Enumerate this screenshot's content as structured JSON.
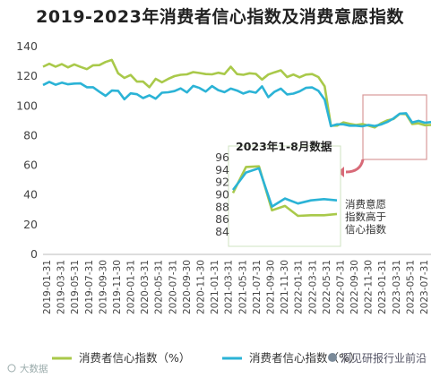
{
  "title": "2019-2023年消费者信心指数及消费意愿指数",
  "chart_data": [
    {
      "type": "line",
      "title": "2019-2023年消费者信心指数及消费意愿指数",
      "xlabel": "",
      "ylabel": "",
      "ylim": [
        0,
        140
      ],
      "yticks": [
        0,
        20,
        40,
        60,
        80,
        100,
        120,
        140
      ],
      "xtick_labels": [
        "2019-01-31",
        "2019-03-31",
        "2019-05-31",
        "2019-07-31",
        "2019-09-30",
        "2019-11-30",
        "2020-01-31",
        "2020-03-31",
        "2020-05-31",
        "2020-07-31",
        "2020-09-30",
        "2020-11-30",
        "2021-01-31",
        "2021-03-31",
        "2021-05-31",
        "2021-07-31",
        "2021-09-30",
        "2021-11-30",
        "2022-01-31",
        "2022-03-31",
        "2022-05-31",
        "2022-07-31",
        "2022-09-30",
        "2022-11-30",
        "2023-01-31",
        "2023-03-31",
        "2023-05-31",
        "2023-07-31"
      ],
      "legend_position": "bottom",
      "grid": false,
      "series": [
        {
          "name": "消费者信心指数（%）",
          "color": "#a9c94a",
          "values": [
            126.4,
            128.4,
            126.5,
            128.2,
            126.0,
            128.0,
            126.3,
            124.8,
            127.4,
            127.5,
            129.6,
            131.0,
            122.0,
            118.9,
            120.9,
            116.4,
            116.4,
            112.6,
            118.3,
            115.9,
            118.2,
            120.1,
            121.0,
            121.3,
            122.8,
            122.2,
            121.5,
            121.3,
            122.4,
            121.5,
            126.4,
            121.5,
            121.0,
            122.0,
            121.6,
            117.8,
            121.2,
            122.7,
            124.0,
            119.5,
            121.2,
            119.3,
            121.1,
            121.5,
            119.5,
            113.2,
            86.7,
            86.8,
            88.9,
            87.9,
            87.2,
            87.8,
            86.8,
            85.5,
            88.3,
            90.3,
            91.2,
            94.7,
            94.5,
            87.8,
            88.3,
            87.0,
            87.2
          ]
        },
        {
          "name": "消费者信心指数（%）",
          "color": "#2bb3d6",
          "values": [
            114.1,
            116.2,
            114.3,
            115.7,
            114.6,
            115.1,
            115.2,
            112.6,
            112.6,
            109.6,
            106.8,
            110.4,
            110.2,
            104.5,
            108.5,
            107.9,
            105.3,
            107.2,
            104.9,
            108.9,
            109.2,
            110.0,
            111.8,
            109.1,
            113.5,
            112.1,
            109.7,
            113.4,
            110.7,
            109.3,
            111.7,
            110.4,
            108.4,
            109.8,
            108.9,
            113.2,
            105.9,
            109.6,
            111.7,
            107.8,
            108.3,
            109.8,
            112.2,
            112.5,
            110.2,
            104.3,
            86.4,
            87.6,
            87.6,
            86.7,
            86.7,
            86.3,
            87.2,
            86.5,
            87.5,
            89.2,
            91.6,
            94.8,
            95.1,
            88.8,
            90.0,
            88.7,
            89.1
          ]
        }
      ]
    },
    {
      "type": "line",
      "title": "2023年1-8月数据",
      "ylim": [
        84,
        96
      ],
      "yticks": [
        84,
        86,
        88,
        90,
        92,
        94,
        96
      ],
      "grid": false,
      "series": [
        {
          "name": "",
          "color": "#a9c94a",
          "values": [
            90.3,
            94.5,
            94.6,
            87.5,
            88.2,
            86.6,
            86.7,
            86.7,
            86.9
          ]
        },
        {
          "name": "",
          "color": "#2bb3d6",
          "values": [
            90.8,
            93.6,
            94.3,
            88.1,
            89.4,
            88.6,
            89.1,
            89.3,
            89.1
          ]
        }
      ]
    }
  ],
  "annotation_lines": [
    "消费意愿",
    "指数高于",
    "信心指数"
  ],
  "legend": [
    "消费者信心指数（%）",
    "消费者信心指数（%）"
  ],
  "watermark_left": "大数据",
  "watermark_right": "洞见研报行业前沿"
}
